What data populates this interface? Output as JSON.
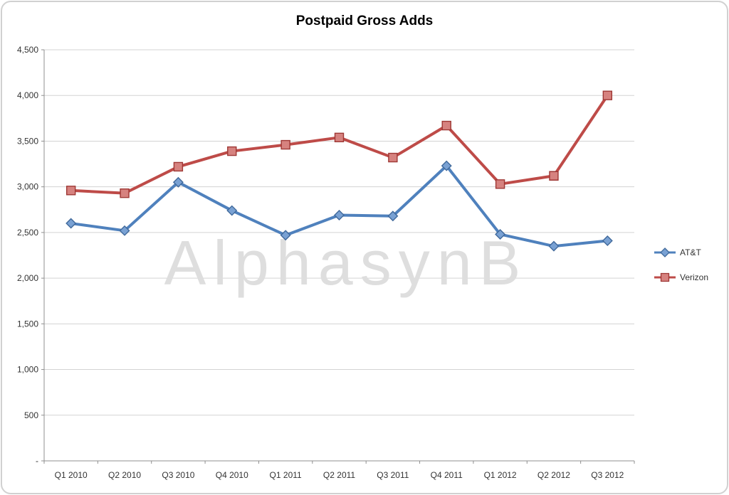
{
  "watermark": "AlphasynB",
  "chart_data": {
    "type": "line",
    "title": "Postpaid Gross Adds",
    "categories": [
      "Q1 2010",
      "Q2 2010",
      "Q3 2010",
      "Q4 2010",
      "Q1 2011",
      "Q2 2011",
      "Q3 2011",
      "Q4 2011",
      "Q1 2012",
      "Q2 2012",
      "Q3 2012"
    ],
    "series": [
      {
        "name": "AT&T",
        "values": [
          2600,
          2520,
          3050,
          2740,
          2470,
          2690,
          2680,
          3230,
          2480,
          2350,
          2410
        ],
        "line_color": "#4F81BD",
        "marker": "diamond",
        "marker_fill": "#79A1D3",
        "marker_stroke": "#40699B"
      },
      {
        "name": "Verizon",
        "values": [
          2960,
          2930,
          3220,
          3390,
          3460,
          3540,
          3320,
          3670,
          3030,
          3120,
          4000
        ],
        "line_color": "#BE4B48",
        "marker": "square",
        "marker_fill": "#D6827F",
        "marker_stroke": "#9E3734"
      }
    ],
    "ylim": [
      0,
      4500
    ],
    "y_ticks": [
      {
        "value": 0,
        "label": "-"
      },
      {
        "value": 500,
        "label": "500"
      },
      {
        "value": 1000,
        "label": "1,000"
      },
      {
        "value": 1500,
        "label": "1,500"
      },
      {
        "value": 2000,
        "label": "2,000"
      },
      {
        "value": 2500,
        "label": "2,500"
      },
      {
        "value": 3000,
        "label": "3,000"
      },
      {
        "value": 3500,
        "label": "3,500"
      },
      {
        "value": 4000,
        "label": "4,000"
      },
      {
        "value": 4500,
        "label": "4,500"
      }
    ],
    "grid": true,
    "legend_position": "right",
    "grid_color": "#D3D3D3",
    "axis_color": "#8F8F8F",
    "tick_label_color": "#333333",
    "watermark_color": "#DEDEDE"
  }
}
